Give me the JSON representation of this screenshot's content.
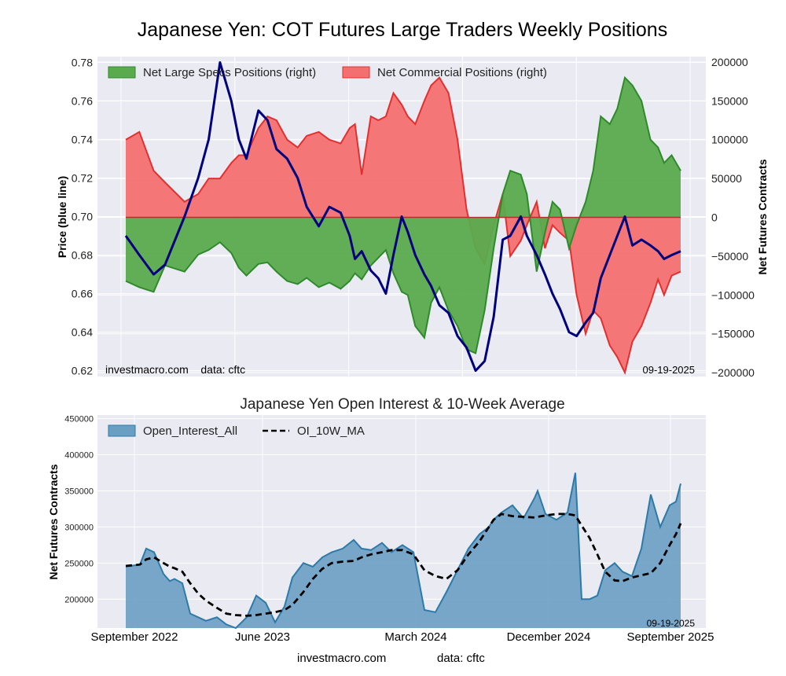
{
  "page": {
    "title": "Japanese Yen: COT Futures Large Traders Weekly Positions",
    "footer_site": "investmacro.com",
    "footer_data": "data: cftc"
  },
  "chart_data": [
    {
      "type": "line+area",
      "name": "top",
      "ylabel_left": "Price (blue line)",
      "ylabel_right": "Net Futures Contracts",
      "ylim_left": [
        0.617,
        0.783
      ],
      "ylim_right": [
        -205000,
        207000
      ],
      "yticks_left": [
        0.62,
        0.64,
        0.66,
        0.68,
        0.7,
        0.72,
        0.74,
        0.76,
        0.78
      ],
      "ytick_labels_left": [
        "0.62",
        "0.64",
        "0.66",
        "0.68",
        "0.70",
        "0.72",
        "0.74",
        "0.76",
        "0.78"
      ],
      "yticks_right": [
        -200000,
        -150000,
        -100000,
        -50000,
        0,
        50000,
        100000,
        150000,
        200000
      ],
      "ytick_labels_right": [
        "−200000",
        "−150000",
        "−100000",
        "−50000",
        "0",
        "50000",
        "100000",
        "150000",
        "200000"
      ],
      "annotation_left": "investmacro.com    data: cftc",
      "annotation_right": "09-19-2025",
      "grid": true,
      "legend": {
        "placement": "top-left",
        "entries": [
          "Net Large Specs Positions (right)",
          "Net Commercial Positions (right)"
        ]
      },
      "colors": {
        "specs_fill": "#5aab4e",
        "specs_line": "#2f8a2b",
        "comm_fill": "#f47070",
        "comm_line": "#e23030",
        "price": "#00007f",
        "background": "#eaeaf2"
      },
      "x": [
        0,
        18,
        37,
        52,
        78,
        96,
        110,
        125,
        140,
        150,
        160,
        176,
        188,
        200,
        214,
        228,
        240,
        256,
        270,
        285,
        297,
        304,
        313,
        325,
        335,
        345,
        355,
        366,
        374,
        384,
        396,
        405,
        416,
        428,
        440,
        452,
        464,
        476,
        488,
        500,
        510,
        524,
        532,
        545,
        556,
        566,
        576,
        588,
        598,
        610,
        620,
        630,
        642,
        652,
        662,
        672,
        684,
        696,
        706,
        714,
        724,
        736
      ],
      "series": [
        {
          "name": "Net Large Specs Positions (right)",
          "values": [
            -82000,
            -90000,
            -96000,
            -62000,
            -70000,
            -48000,
            -42000,
            -32000,
            -46000,
            -65000,
            -75000,
            -60000,
            -58000,
            -70000,
            -82000,
            -86000,
            -78000,
            -90000,
            -84000,
            -92000,
            -82000,
            -72000,
            -80000,
            -62000,
            -52000,
            -42000,
            -72000,
            -96000,
            -100000,
            -140000,
            -155000,
            -110000,
            -90000,
            -120000,
            -140000,
            -170000,
            -175000,
            -120000,
            -40000,
            30000,
            60000,
            55000,
            30000,
            -70000,
            -20000,
            20000,
            10000,
            -40000,
            -10000,
            20000,
            60000,
            130000,
            120000,
            140000,
            180000,
            170000,
            150000,
            100000,
            90000,
            70000,
            80000,
            60000
          ]
        },
        {
          "name": "Net Commercial Positions (right)",
          "values": [
            100000,
            110000,
            60000,
            45000,
            20000,
            30000,
            50000,
            50000,
            70000,
            80000,
            80000,
            115000,
            130000,
            125000,
            100000,
            90000,
            105000,
            110000,
            100000,
            95000,
            115000,
            120000,
            55000,
            130000,
            125000,
            130000,
            160000,
            145000,
            130000,
            120000,
            150000,
            170000,
            180000,
            160000,
            100000,
            10000,
            -40000,
            -60000,
            -10000,
            30000,
            -50000,
            -30000,
            -10000,
            20000,
            -40000,
            -10000,
            -20000,
            -30000,
            -100000,
            -150000,
            -120000,
            -130000,
            -165000,
            -180000,
            -200000,
            -160000,
            -140000,
            -110000,
            -80000,
            -100000,
            -75000,
            -70000
          ]
        },
        {
          "name": "Price (blue line)",
          "values": [
            0.69,
            0.68,
            0.67,
            0.675,
            0.7,
            0.72,
            0.74,
            0.78,
            0.76,
            0.74,
            0.73,
            0.755,
            0.75,
            0.735,
            0.73,
            0.72,
            0.705,
            0.695,
            0.705,
            0.702,
            0.69,
            0.678,
            0.682,
            0.672,
            0.668,
            0.66,
            0.68,
            0.7,
            0.692,
            0.68,
            0.67,
            0.664,
            0.654,
            0.65,
            0.638,
            0.632,
            0.62,
            0.625,
            0.648,
            0.688,
            0.69,
            0.7,
            0.69,
            0.68,
            0.67,
            0.66,
            0.652,
            0.64,
            0.638,
            0.645,
            0.65,
            0.668,
            0.68,
            0.69,
            0.7,
            0.685,
            0.688,
            0.685,
            0.682,
            0.678,
            0.68,
            0.682
          ]
        }
      ]
    },
    {
      "type": "area+line",
      "name": "bottom",
      "title": "Japanese Yen Open Interest & 10-Week Average",
      "ylabel": "Net Futures Contracts",
      "ylim": [
        160000,
        455000
      ],
      "yticks": [
        200000,
        250000,
        300000,
        350000,
        400000,
        450000
      ],
      "ytick_labels": [
        "200000",
        "250000",
        "300000",
        "350000",
        "400000",
        "450000"
      ],
      "xtick_labels": [
        "September 2022",
        "June 2023",
        "March 2024",
        "December 2024",
        "September 2025"
      ],
      "annotation_right": "09-19-2025",
      "grid": true,
      "legend": {
        "placement": "top-left",
        "entries": [
          "Open_Interest_All",
          "OI_10W_MA"
        ]
      },
      "colors": {
        "oi_fill": "#6a9fc4",
        "oi_line": "#2d7aa8",
        "ma": "#000000",
        "background": "#eaeaf2"
      },
      "x": [
        0,
        18,
        26,
        36,
        48,
        56,
        62,
        72,
        82,
        92,
        102,
        116,
        128,
        140,
        154,
        166,
        178,
        190,
        202,
        212,
        226,
        238,
        250,
        262,
        276,
        290,
        300,
        312,
        326,
        338,
        352,
        366,
        380,
        394,
        408,
        422,
        436,
        450,
        462,
        468,
        478,
        492,
        506,
        520,
        524,
        534,
        548,
        562,
        572,
        580,
        590,
        600,
        610,
        622,
        632,
        644,
        656,
        668,
        680,
        692,
        700,
        706
      ],
      "series": [
        {
          "name": "Open_Interest_All",
          "values": [
            245000,
            248000,
            270000,
            265000,
            235000,
            225000,
            228000,
            222000,
            180000,
            175000,
            170000,
            175000,
            165000,
            160000,
            175000,
            205000,
            195000,
            168000,
            190000,
            230000,
            250000,
            245000,
            258000,
            265000,
            270000,
            282000,
            270000,
            268000,
            278000,
            265000,
            275000,
            265000,
            185000,
            182000,
            210000,
            240000,
            270000,
            290000,
            300000,
            310000,
            320000,
            330000,
            312000,
            340000,
            350000,
            318000,
            310000,
            320000,
            375000,
            200000,
            200000,
            205000,
            240000,
            250000,
            238000,
            232000,
            270000,
            345000,
            300000,
            330000,
            335000,
            360000
          ]
        },
        {
          "name": "OI_10W_MA",
          "values": [
            246000,
            248000,
            255000,
            258000,
            250000,
            245000,
            243000,
            238000,
            222000,
            208000,
            198000,
            188000,
            180000,
            178000,
            177000,
            178000,
            180000,
            182000,
            185000,
            192000,
            210000,
            228000,
            242000,
            250000,
            252000,
            253000,
            258000,
            262000,
            265000,
            268000,
            268000,
            262000,
            240000,
            232000,
            228000,
            240000,
            262000,
            280000,
            300000,
            310000,
            318000,
            315000,
            314000,
            313000,
            314000,
            316000,
            318000,
            318000,
            316000,
            302000,
            285000,
            262000,
            238000,
            226000,
            225000,
            230000,
            233000,
            236000,
            250000,
            275000,
            290000,
            305000
          ]
        }
      ]
    }
  ]
}
